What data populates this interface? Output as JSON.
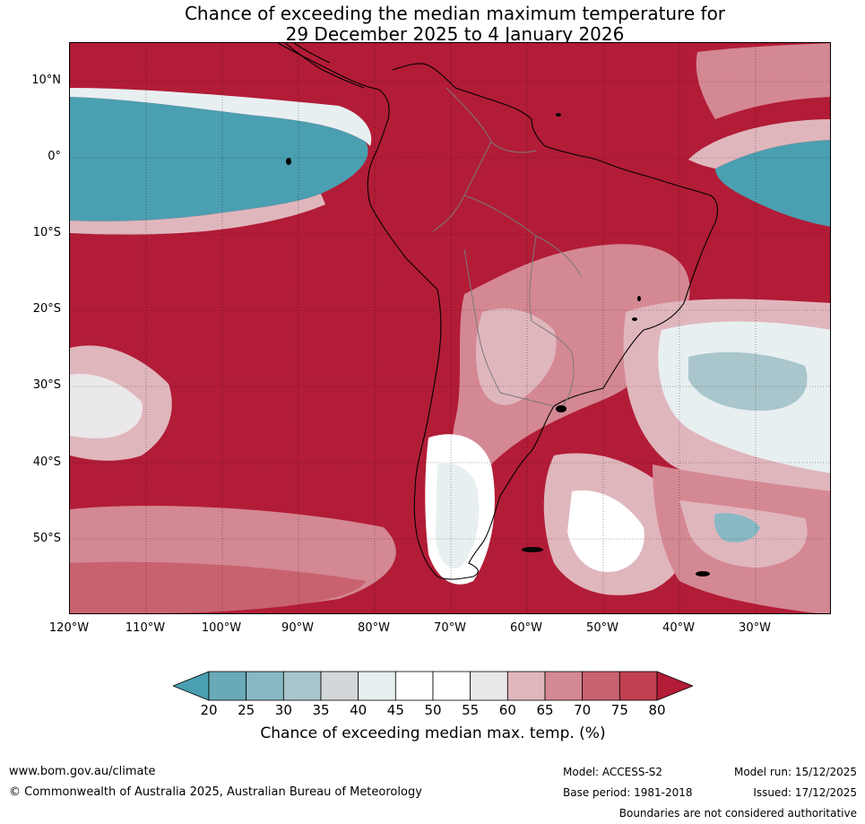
{
  "title": {
    "line1": "Chance of exceeding the median maximum temperature for",
    "line2": "29 December 2025 to 4 January 2026"
  },
  "map": {
    "lat_labels": [
      "10°N",
      "0°",
      "10°S",
      "20°S",
      "30°S",
      "40°S",
      "50°S"
    ],
    "lon_labels": [
      "120°W",
      "110°W",
      "100°W",
      "90°W",
      "80°W",
      "70°W",
      "60°W",
      "50°W",
      "40°W",
      "30°W"
    ]
  },
  "legend": {
    "ticks": [
      "20",
      "25",
      "30",
      "35",
      "40",
      "45",
      "50",
      "55",
      "60",
      "65",
      "70",
      "75",
      "80"
    ],
    "colors": [
      "#4a9fb0",
      "#6aaab8",
      "#88b8c4",
      "#a9c6cc",
      "#d3d7da",
      "#e8eff1",
      "#ffffff",
      "#ffffff",
      "#ebe8e9",
      "#e0b6bd",
      "#d48893",
      "#c9626f",
      "#c0404f",
      "#b21c37"
    ],
    "label": "Chance of exceeding median max. temp. (%)"
  },
  "footer": {
    "url": "www.bom.gov.au/climate",
    "copyright": "© Commonwealth of Australia 2025, Australian Bureau of Meteorology",
    "model": "Model: ACCESS-S2",
    "base_period": "Base period: 1981-2018",
    "model_run": "Model run: 15/12/2025",
    "issued": "Issued: 17/12/2025",
    "disclaimer": "Boundaries are not considered authoritative"
  }
}
